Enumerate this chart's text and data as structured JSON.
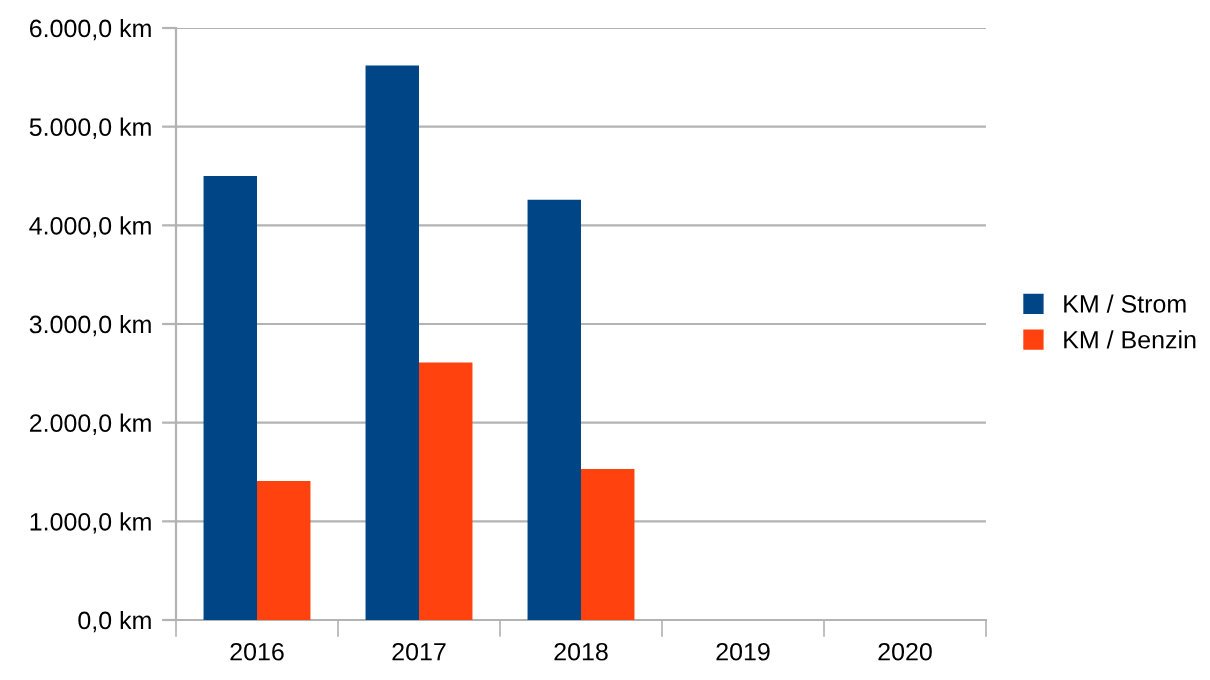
{
  "chart_data": {
    "type": "bar",
    "categories": [
      "2016",
      "2017",
      "2018",
      "2019",
      "2020"
    ],
    "series": [
      {
        "name": "KM / Strom",
        "color": "#004586",
        "values": [
          4500,
          5620,
          4260,
          null,
          null
        ]
      },
      {
        "name": "KM / Benzin",
        "color": "#ff420e",
        "values": [
          1410,
          2610,
          1530,
          null,
          null
        ]
      }
    ],
    "ylim": [
      0,
      6000
    ],
    "yticks": [
      {
        "value": 0,
        "label": "0,0 km"
      },
      {
        "value": 1000,
        "label": "1.000,0 km"
      },
      {
        "value": 2000,
        "label": "2.000,0 km"
      },
      {
        "value": 3000,
        "label": "3.000,0 km"
      },
      {
        "value": 4000,
        "label": "4.000,0 km"
      },
      {
        "value": 5000,
        "label": "5.000,0 km"
      },
      {
        "value": 6000,
        "label": "6.000,0 km"
      }
    ],
    "grid": "y",
    "legend": "right"
  }
}
